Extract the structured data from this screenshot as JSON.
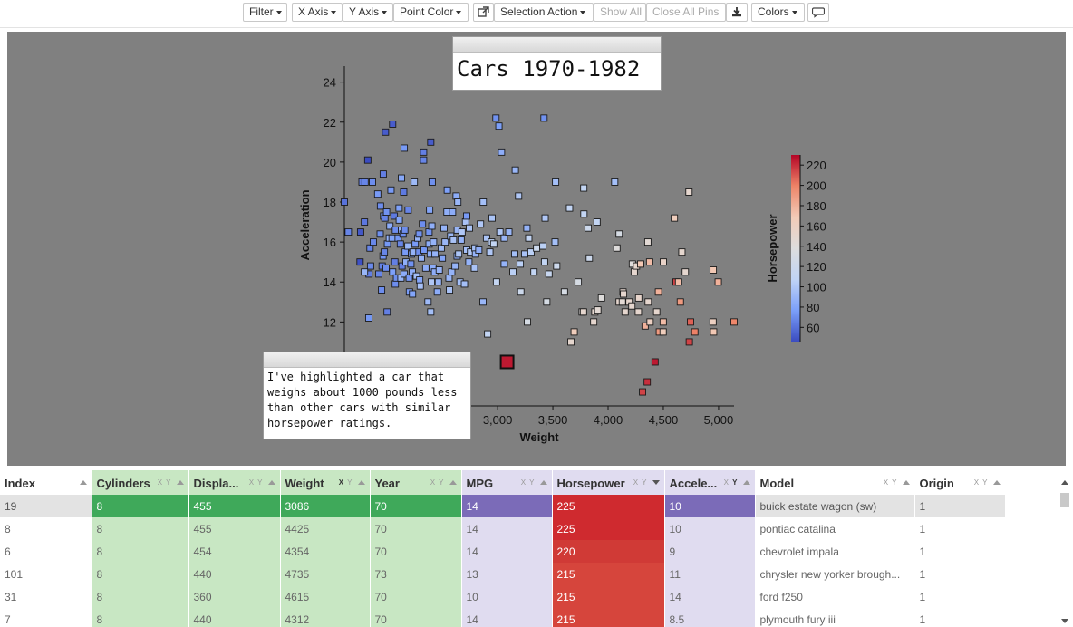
{
  "toolbar": {
    "filter": "Filter",
    "x_axis": "X Axis",
    "y_axis": "Y Axis",
    "point_color": "Point Color",
    "popout_icon": "external-link-icon",
    "selection_action": "Selection Action",
    "show_all": "Show All",
    "close_all_pins": "Close All Pins",
    "download_icon": "download-icon",
    "colors": "Colors",
    "comment_icon": "speech-bubble-icon"
  },
  "title_box": {
    "text": "Cars 1970-1982"
  },
  "note_box": {
    "text": "I've highlighted a car that weighs about 1000 pounds less than other cars with similar horsepower ratings."
  },
  "chart_data": {
    "type": "scatter",
    "title": "Cars 1970-1982",
    "xlabel": "Weight",
    "ylabel": "Acceleration",
    "colorbar_label": "Horsepower",
    "xlim": [
      1613,
      5140
    ],
    "ylim": [
      7.8,
      24.8
    ],
    "xticks": [
      "3,000",
      "3,500",
      "4,000",
      "4,500",
      "5,000"
    ],
    "yticks": [
      "12",
      "14",
      "16",
      "18",
      "20",
      "22",
      "24"
    ],
    "colorbar_ticks": [
      "60",
      "80",
      "100",
      "120",
      "140",
      "160",
      "180",
      "200",
      "220"
    ],
    "colorbar_range": [
      46,
      230
    ],
    "colormap": [
      "#3b4cc0",
      "#7b9ff9",
      "#c0d4f5",
      "#dddddd",
      "#f2cbb7",
      "#ee8468",
      "#b40426"
    ],
    "highlight": {
      "weight": 3086,
      "acceleration": 10,
      "horsepower": 225
    },
    "points": [
      [
        1613,
        18,
        60
      ],
      [
        1649,
        16.5,
        67
      ],
      [
        1755,
        15,
        48
      ],
      [
        1760,
        16.5,
        50
      ],
      [
        1773,
        19,
        65
      ],
      [
        1795,
        17,
        62
      ],
      [
        1800,
        19,
        67
      ],
      [
        1825,
        20.1,
        46
      ],
      [
        1834,
        12.2,
        74
      ],
      [
        1836,
        14.4,
        65
      ],
      [
        1845,
        15.7,
        67
      ],
      [
        1850,
        14.8,
        69
      ],
      [
        1867,
        19,
        70
      ],
      [
        1875,
        16,
        68
      ],
      [
        1915,
        18.4,
        75
      ],
      [
        1925,
        14.4,
        67
      ],
      [
        1937,
        16.4,
        71
      ],
      [
        1940,
        17.8,
        70
      ],
      [
        1950,
        13.6,
        70
      ],
      [
        1955,
        14.8,
        66
      ],
      [
        1963,
        15.3,
        73
      ],
      [
        1965,
        19.4,
        65
      ],
      [
        1968,
        17.3,
        75
      ],
      [
        1975,
        15.5,
        67
      ],
      [
        1980,
        17.2,
        66
      ],
      [
        1985,
        21.5,
        52
      ],
      [
        1990,
        14.7,
        70
      ],
      [
        1995,
        17.5,
        72
      ],
      [
        2000,
        12.5,
        65
      ],
      [
        2003,
        15.9,
        74
      ],
      [
        2020,
        16.2,
        88
      ],
      [
        2025,
        16.8,
        84
      ],
      [
        2035,
        18.6,
        75
      ],
      [
        2045,
        16.2,
        79
      ],
      [
        2050,
        14.5,
        78
      ],
      [
        2050,
        21.9,
        52
      ],
      [
        2065,
        17.3,
        63
      ],
      [
        2070,
        15,
        65
      ],
      [
        2074,
        13.9,
        70
      ],
      [
        2075,
        16.6,
        70
      ],
      [
        2085,
        14.2,
        71
      ],
      [
        2100,
        16.2,
        74
      ],
      [
        2108,
        17.7,
        78
      ],
      [
        2110,
        17.1,
        80
      ],
      [
        2120,
        15.9,
        67
      ],
      [
        2125,
        14.2,
        90
      ],
      [
        2130,
        16.6,
        88
      ],
      [
        2135,
        14.8,
        65
      ],
      [
        2144,
        16.4,
        70
      ],
      [
        2150,
        18.5,
        63
      ],
      [
        2155,
        14.4,
        84
      ],
      [
        2160,
        16.6,
        70
      ],
      [
        2164,
        15.5,
        75
      ],
      [
        2171,
        15,
        86
      ],
      [
        2188,
        15.8,
        90
      ],
      [
        2190,
        17.6,
        67
      ],
      [
        2200,
        14.2,
        75
      ],
      [
        2202,
        13.5,
        76
      ],
      [
        2215,
        14.9,
        72
      ],
      [
        2220,
        15.4,
        78
      ],
      [
        2228,
        14.5,
        85
      ],
      [
        2230,
        13.4,
        80
      ],
      [
        2234,
        15.5,
        88
      ],
      [
        2246,
        19,
        92
      ],
      [
        2254,
        15.9,
        75
      ],
      [
        2265,
        14.3,
        94
      ],
      [
        2278,
        16.2,
        88
      ],
      [
        2288,
        15.5,
        70
      ],
      [
        2290,
        16.4,
        72
      ],
      [
        2295,
        14.1,
        80
      ],
      [
        2300,
        13.8,
        96
      ],
      [
        2310,
        15.2,
        88
      ],
      [
        2320,
        16.9,
        70
      ],
      [
        2330,
        20.5,
        65
      ],
      [
        2335,
        15.6,
        74
      ],
      [
        2350,
        14.7,
        85
      ],
      [
        2370,
        13,
        92
      ],
      [
        2379,
        16.5,
        72
      ],
      [
        2380,
        15.9,
        84
      ],
      [
        2385,
        17.6,
        80
      ],
      [
        2391,
        15.4,
        84
      ],
      [
        2395,
        12.5,
        95
      ],
      [
        2401,
        14,
        100
      ],
      [
        2405,
        16.8,
        86
      ],
      [
        2408,
        19,
        71
      ],
      [
        2415,
        14.7,
        84
      ],
      [
        2420,
        16,
        88
      ],
      [
        2430,
        14.5,
        85
      ],
      [
        2434,
        15.4,
        88
      ],
      [
        2455,
        13.5,
        84
      ],
      [
        2464,
        14,
        90
      ],
      [
        2472,
        14.6,
        88
      ],
      [
        2490,
        15.7,
        92
      ],
      [
        2500,
        15.2,
        80
      ],
      [
        2515,
        16.7,
        88
      ],
      [
        2525,
        16,
        90
      ],
      [
        2542,
        17.5,
        86
      ],
      [
        2545,
        18.6,
        78
      ],
      [
        2560,
        14.2,
        90
      ],
      [
        2565,
        13.6,
        97
      ],
      [
        2575,
        16.3,
        91
      ],
      [
        2585,
        14.5,
        88
      ],
      [
        2592,
        17.5,
        84
      ],
      [
        2600,
        16.1,
        97
      ],
      [
        2615,
        14.8,
        88
      ],
      [
        2625,
        18.3,
        84
      ],
      [
        2634,
        15.3,
        85
      ],
      [
        2635,
        16.6,
        90
      ],
      [
        2648,
        15.4,
        98
      ],
      [
        2660,
        14,
        95
      ],
      [
        2670,
        16.1,
        88
      ],
      [
        2678,
        16.5,
        100
      ],
      [
        2700,
        13.9,
        95
      ],
      [
        2710,
        17,
        97
      ],
      [
        2720,
        15.6,
        95
      ],
      [
        2740,
        15,
        88
      ],
      [
        2745,
        16.7,
        98
      ],
      [
        2755,
        15.5,
        100
      ],
      [
        2790,
        14.7,
        97
      ],
      [
        2795,
        15.7,
        95
      ],
      [
        2800,
        15.4,
        88
      ],
      [
        2830,
        15.6,
        85
      ],
      [
        2845,
        16.9,
        100
      ],
      [
        2868,
        13,
        90
      ],
      [
        2900,
        16.2,
        98
      ],
      [
        2910,
        11.4,
        110
      ],
      [
        2930,
        15.5,
        100
      ],
      [
        2945,
        16,
        105
      ],
      [
        2950,
        17.2,
        98
      ],
      [
        2965,
        15.9,
        110
      ],
      [
        2990,
        14,
        112
      ],
      [
        3012,
        21.8,
        77
      ],
      [
        3021,
        16.5,
        100
      ],
      [
        3035,
        20.5,
        85
      ],
      [
        3060,
        16.2,
        90
      ],
      [
        3086,
        10,
        225
      ],
      [
        3102,
        16.5,
        90
      ],
      [
        3139,
        14.5,
        105
      ],
      [
        3155,
        15.4,
        95
      ],
      [
        3160,
        19.6,
        90
      ],
      [
        3190,
        18.3,
        100
      ],
      [
        3205,
        14.9,
        105
      ],
      [
        3210,
        13.5,
        120
      ],
      [
        3245,
        15.4,
        97
      ],
      [
        3265,
        16.7,
        88
      ],
      [
        3270,
        12,
        130
      ],
      [
        3282,
        16.2,
        110
      ],
      [
        3302,
        15.5,
        105
      ],
      [
        3329,
        14.5,
        110
      ],
      [
        3353,
        15.7,
        120
      ],
      [
        3410,
        15.8,
        105
      ],
      [
        3420,
        22.2,
        72
      ],
      [
        3425,
        15,
        110
      ],
      [
        3430,
        17.2,
        100
      ],
      [
        3445,
        13,
        130
      ],
      [
        3465,
        14.4,
        115
      ],
      [
        3525,
        19,
        95
      ],
      [
        3535,
        14.8,
        120
      ],
      [
        3605,
        13.5,
        130
      ],
      [
        3651,
        17.7,
        110
      ],
      [
        3664,
        11,
        150
      ],
      [
        3693,
        11.5,
        165
      ],
      [
        3730,
        14,
        130
      ],
      [
        3765,
        12.5,
        140
      ],
      [
        3777,
        12.5,
        150
      ],
      [
        3781,
        17.4,
        110
      ],
      [
        3820,
        16.7,
        120
      ],
      [
        3830,
        15.2,
        120
      ],
      [
        3870,
        12,
        150
      ],
      [
        3880,
        12.5,
        150
      ],
      [
        3900,
        17,
        110
      ],
      [
        3907,
        12.6,
        145
      ],
      [
        3940,
        13.2,
        140
      ],
      [
        4060,
        19,
        95
      ],
      [
        4080,
        15.7,
        140
      ],
      [
        4100,
        13,
        150
      ],
      [
        4129,
        13,
        145
      ],
      [
        4135,
        13.5,
        150
      ],
      [
        4140,
        13.4,
        150
      ],
      [
        4154,
        12.5,
        150
      ],
      [
        4190,
        13,
        150
      ],
      [
        4215,
        12.8,
        150
      ],
      [
        4220,
        14.9,
        140
      ],
      [
        4237,
        14.5,
        150
      ],
      [
        4257,
        14.8,
        150
      ],
      [
        4274,
        12.5,
        150
      ],
      [
        4277,
        13.2,
        152
      ],
      [
        4295,
        14.9,
        170
      ],
      [
        4312,
        8.5,
        215
      ],
      [
        4335,
        11.8,
        180
      ],
      [
        4354,
        9,
        220
      ],
      [
        4363,
        13,
        150
      ],
      [
        4376,
        15,
        175
      ],
      [
        4380,
        12,
        160
      ],
      [
        4425,
        10,
        225
      ],
      [
        4440,
        12.5,
        150
      ],
      [
        4456,
        13.5,
        180
      ],
      [
        4464,
        11.5,
        190
      ],
      [
        4498,
        11.5,
        165
      ],
      [
        4499,
        12,
        175
      ],
      [
        4615,
        14,
        215
      ],
      [
        4638,
        14,
        175
      ],
      [
        4654,
        13,
        190
      ],
      [
        4668,
        15.5,
        150
      ],
      [
        4699,
        14.5,
        150
      ],
      [
        4732,
        18.5,
        150
      ],
      [
        4735,
        11,
        215
      ],
      [
        4746,
        12,
        208
      ],
      [
        4785,
        11.5,
        200
      ],
      [
        4950,
        12,
        160
      ],
      [
        4952,
        14.6,
        170
      ],
      [
        4955,
        11.5,
        170
      ],
      [
        4997,
        14,
        180
      ],
      [
        5140,
        12,
        198
      ],
      [
        1795,
        14.5,
        90
      ],
      [
        2130,
        19.2,
        82
      ],
      [
        2330,
        20.1,
        67
      ],
      [
        2720,
        17.3,
        75
      ],
      [
        2985,
        22.2,
        72
      ],
      [
        3060,
        14.9,
        88
      ],
      [
        3520,
        16,
        95
      ],
      [
        4100,
        16.4,
        130
      ],
      [
        4360,
        16,
        145
      ],
      [
        4500,
        15,
        155
      ],
      [
        4600,
        17.2,
        165
      ],
      [
        3780,
        18.7,
        110
      ],
      [
        2155,
        20.7,
        75
      ],
      [
        2395,
        21,
        52
      ],
      [
        2870,
        18,
        95
      ],
      [
        2640,
        18,
        90
      ]
    ]
  },
  "table": {
    "columns": [
      {
        "name": "Index",
        "color": "#ffffff"
      },
      {
        "name": "Cylinders",
        "color": "#c8e7c3"
      },
      {
        "name": "Displa...",
        "color": "#c8e7c3"
      },
      {
        "name": "Weight",
        "color": "#c8e7c3"
      },
      {
        "name": "Year",
        "color": "#c8e7c3"
      },
      {
        "name": "MPG",
        "color": "#e0dcf0"
      },
      {
        "name": "Horsepower",
        "color": "#e0dcf0"
      },
      {
        "name": "Accele...",
        "color": "#e0dcf0"
      },
      {
        "name": "Model",
        "color": "#ffffff"
      },
      {
        "name": "Origin",
        "color": "#ffffff"
      }
    ],
    "rows": [
      [
        "19",
        "8",
        "455",
        "3086",
        "70",
        "14",
        "225",
        "10",
        "buick estate wagon (sw)",
        "1"
      ],
      [
        "8",
        "8",
        "455",
        "4425",
        "70",
        "14",
        "225",
        "10",
        "pontiac catalina",
        "1"
      ],
      [
        "6",
        "8",
        "454",
        "4354",
        "70",
        "14",
        "220",
        "9",
        "chevrolet impala",
        "1"
      ],
      [
        "101",
        "8",
        "440",
        "4735",
        "73",
        "13",
        "215",
        "11",
        "chrysler new yorker brough...",
        "1"
      ],
      [
        "31",
        "8",
        "360",
        "4615",
        "70",
        "10",
        "215",
        "14",
        "ford f250",
        "1"
      ],
      [
        "7",
        "8",
        "440",
        "4312",
        "70",
        "14",
        "215",
        "8.5",
        "plymouth fury iii",
        "1"
      ]
    ],
    "hp_colors": [
      "#cf2a2f",
      "#cf2a2f",
      "#d03a36",
      "#d6453c",
      "#d6453c",
      "#d6453c"
    ],
    "selected_colors": {
      "green": "#3fa95a",
      "purple": "#7b6bb8",
      "index": "#e3e3e3"
    }
  }
}
